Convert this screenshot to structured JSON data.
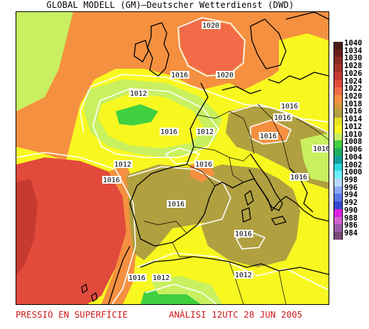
{
  "title": "GLOBAL MODELL (GM)—Deutscher Wetterdienst (DWD)",
  "footer": {
    "left": "PRESSIÓ EN SUPERFÍCIE",
    "right": "ANÀLISI 12UTC 28 JUN 2005"
  },
  "legend": {
    "levels": [
      {
        "label": "1040",
        "color": "#4a1a14"
      },
      {
        "label": "1034",
        "color": "#6b1f18"
      },
      {
        "label": "1030",
        "color": "#8a2a20"
      },
      {
        "label": "1028",
        "color": "#a83228"
      },
      {
        "label": "1026",
        "color": "#c63a30"
      },
      {
        "label": "1024",
        "color": "#e24a3c"
      },
      {
        "label": "1022",
        "color": "#f26a48"
      },
      {
        "label": "1020",
        "color": "#f59040"
      },
      {
        "label": "1018",
        "color": "#d49a38"
      },
      {
        "label": "1016",
        "color": "#b0a040"
      },
      {
        "label": "1014",
        "color": "#e8e020"
      },
      {
        "label": "1012",
        "color": "#f8f820"
      },
      {
        "label": "1010",
        "color": "#c8f060"
      },
      {
        "label": "1008",
        "color": "#40d040"
      },
      {
        "label": "1006",
        "color": "#20b060"
      },
      {
        "label": "1004",
        "color": "#10a098"
      },
      {
        "label": "1002",
        "color": "#30d8e0"
      },
      {
        "label": "1000",
        "color": "#70f0ff"
      },
      {
        "label": "998",
        "color": "#b8d8ff"
      },
      {
        "label": "996",
        "color": "#8aa8f8"
      },
      {
        "label": "994",
        "color": "#5878e8"
      },
      {
        "label": "992",
        "color": "#3848d0"
      },
      {
        "label": "990",
        "color": "#e020e0"
      },
      {
        "label": "988",
        "color": "#d060d0"
      },
      {
        "label": "986",
        "color": "#9a5aa8"
      },
      {
        "label": "984",
        "color": "#7a4a78"
      }
    ]
  },
  "isobar_labels": [
    "1020",
    "1020",
    "1016",
    "1016",
    "1012",
    "1016",
    "1016",
    "1012",
    "1016",
    "1016",
    "1012",
    "1016",
    "1016",
    "1016",
    "1016",
    "1016",
    "1012",
    "1016",
    "1012"
  ]
}
